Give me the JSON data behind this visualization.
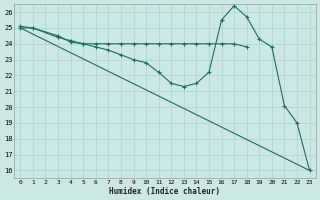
{
  "xlabel": "Humidex (Indice chaleur)",
  "background_color": "#cce8e4",
  "grid_color": "#b0d8d4",
  "line_color": "#1a6e64",
  "ylim": [
    15.5,
    26.5
  ],
  "xlim": [
    -0.5,
    23.5
  ],
  "yticks": [
    16,
    17,
    18,
    19,
    20,
    21,
    22,
    23,
    24,
    25,
    26
  ],
  "xticks": [
    0,
    1,
    2,
    3,
    4,
    5,
    6,
    7,
    8,
    9,
    10,
    11,
    12,
    13,
    14,
    15,
    16,
    17,
    18,
    19,
    20,
    21,
    22,
    23
  ],
  "line1_x": [
    0,
    1,
    3,
    4,
    5,
    6,
    7,
    8,
    9,
    10,
    11,
    12,
    13,
    14,
    15,
    16,
    17,
    18,
    19,
    20,
    21,
    22,
    23
  ],
  "line1_y": [
    25.1,
    25.0,
    24.5,
    24.1,
    24.0,
    23.8,
    23.6,
    23.3,
    23.0,
    22.8,
    22.2,
    21.5,
    21.3,
    21.5,
    22.2,
    25.5,
    26.4,
    25.7,
    24.3,
    23.8,
    20.1,
    19.0,
    16.0
  ],
  "line2_x": [
    0,
    1,
    3,
    4,
    5,
    6,
    7,
    8,
    9,
    10,
    11,
    12,
    13,
    14,
    15,
    16,
    17,
    18
  ],
  "line2_y": [
    25.0,
    25.0,
    24.4,
    24.2,
    24.0,
    24.0,
    24.0,
    24.0,
    24.0,
    24.0,
    24.0,
    24.0,
    24.0,
    24.0,
    24.0,
    24.0,
    24.0,
    23.8
  ]
}
